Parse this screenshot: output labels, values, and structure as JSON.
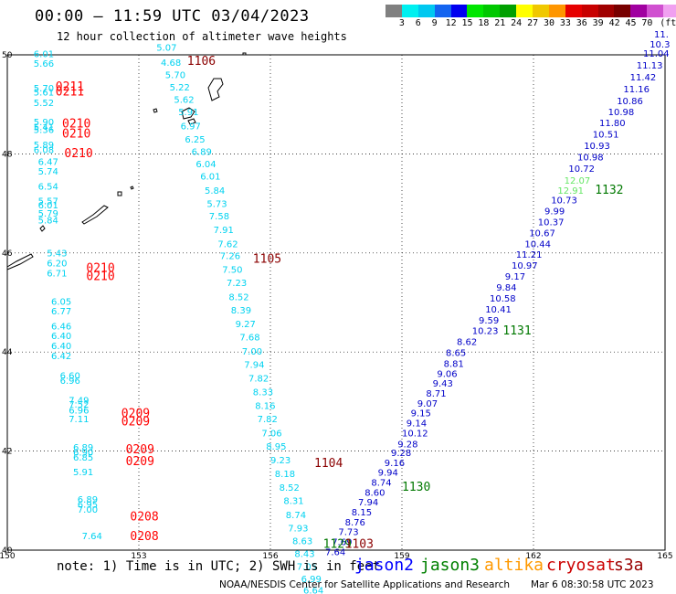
{
  "title": "00:00 – 11:59 UTC 03/04/2023",
  "subtitle": "12 hour collection of altimeter wave heights",
  "legend": {
    "colors": [
      "#808080",
      "#00f0f0",
      "#00c8f0",
      "#1464f0",
      "#0000f0",
      "#00e600",
      "#00c800",
      "#00a000",
      "#ffff00",
      "#f0c800",
      "#ff9600",
      "#e60000",
      "#c80000",
      "#a00000",
      "#780000",
      "#a000a0",
      "#d050d0",
      "#f0a0f0",
      "#000000"
    ],
    "labels": [
      "3",
      "6",
      "9",
      "12",
      "15",
      "18",
      "21",
      "24",
      "27",
      "30",
      "33",
      "36",
      "39",
      "42",
      "45",
      "70",
      "(ft)"
    ]
  },
  "axes": {
    "x_ticks": [
      "150",
      "153",
      "156",
      "159",
      "162",
      "165"
    ],
    "y_ticks": [
      "40",
      "42",
      "44",
      "46",
      "48",
      "50"
    ]
  },
  "tracks": [
    {
      "id": "s3a_west",
      "color": "#00d2f0",
      "points": [
        {
          "v": "6.01",
          "lon": 150.6,
          "lat": 49.95
        },
        {
          "v": "5.66",
          "lon": 150.6,
          "lat": 49.76
        },
        {
          "v": "5.70",
          "lon": 150.6,
          "lat": 49.26
        },
        {
          "v": "5.61",
          "lon": 150.6,
          "lat": 49.18
        },
        {
          "v": "5.52",
          "lon": 150.6,
          "lat": 48.97
        },
        {
          "v": "5.90",
          "lon": 150.6,
          "lat": 48.58
        },
        {
          "v": "5.41",
          "lon": 150.6,
          "lat": 48.48
        },
        {
          "v": "5.36",
          "lon": 150.6,
          "lat": 48.42
        },
        {
          "v": "5.89",
          "lon": 150.6,
          "lat": 48.12
        },
        {
          "v": "6.08",
          "lon": 150.6,
          "lat": 48.02
        },
        {
          "v": "6.47",
          "lon": 150.7,
          "lat": 47.78
        },
        {
          "v": "5.74",
          "lon": 150.7,
          "lat": 47.58
        },
        {
          "v": "6.54",
          "lon": 150.7,
          "lat": 47.28
        },
        {
          "v": "5.57",
          "lon": 150.7,
          "lat": 46.98
        },
        {
          "v": "6.01",
          "lon": 150.7,
          "lat": 46.9
        },
        {
          "v": "5.79",
          "lon": 150.7,
          "lat": 46.73
        },
        {
          "v": "5.84",
          "lon": 150.7,
          "lat": 46.6
        },
        {
          "v": "5.43",
          "lon": 150.9,
          "lat": 45.93
        },
        {
          "v": "6.20",
          "lon": 150.9,
          "lat": 45.73
        },
        {
          "v": "6.71",
          "lon": 150.9,
          "lat": 45.53
        },
        {
          "v": "6.05",
          "lon": 151.0,
          "lat": 44.95
        },
        {
          "v": "6.77",
          "lon": 151.0,
          "lat": 44.76
        },
        {
          "v": "6.46",
          "lon": 151.0,
          "lat": 44.46
        },
        {
          "v": "6.40",
          "lon": 151.0,
          "lat": 44.26
        },
        {
          "v": "6.40",
          "lon": 151.0,
          "lat": 44.06
        },
        {
          "v": "6.42",
          "lon": 151.0,
          "lat": 43.86
        },
        {
          "v": "6.60",
          "lon": 151.2,
          "lat": 43.46
        },
        {
          "v": "6.96",
          "lon": 151.2,
          "lat": 43.36
        },
        {
          "v": "7.49",
          "lon": 151.4,
          "lat": 42.96
        },
        {
          "v": "7.52",
          "lon": 151.4,
          "lat": 42.88
        },
        {
          "v": "6.96",
          "lon": 151.4,
          "lat": 42.76
        },
        {
          "v": "7.11",
          "lon": 151.4,
          "lat": 42.58
        },
        {
          "v": "6.89",
          "lon": 151.5,
          "lat": 42.01
        },
        {
          "v": "6.90",
          "lon": 151.5,
          "lat": 41.91
        },
        {
          "v": "6.85",
          "lon": 151.5,
          "lat": 41.81
        },
        {
          "v": "5.91",
          "lon": 151.5,
          "lat": 41.51
        },
        {
          "v": "6.89",
          "lon": 151.6,
          "lat": 40.96
        },
        {
          "v": "6.95",
          "lon": 151.6,
          "lat": 40.86
        },
        {
          "v": "7.00",
          "lon": 151.6,
          "lat": 40.76
        },
        {
          "v": "7.64",
          "lon": 151.7,
          "lat": 40.22
        }
      ]
    },
    {
      "id": "s3a_central",
      "color": "#00d2f0",
      "points": [
        {
          "v": "5.07",
          "lon": 153.4,
          "lat": 50.08
        },
        {
          "v": "4.68",
          "lon": 153.5,
          "lat": 49.78
        },
        {
          "v": "5.70",
          "lon": 153.6,
          "lat": 49.53
        },
        {
          "v": "5.22",
          "lon": 153.7,
          "lat": 49.28
        },
        {
          "v": "5.62",
          "lon": 153.8,
          "lat": 49.03
        },
        {
          "v": "5.91",
          "lon": 153.9,
          "lat": 48.78
        },
        {
          "v": "6.97",
          "lon": 153.95,
          "lat": 48.5
        },
        {
          "v": "6.25",
          "lon": 154.05,
          "lat": 48.23
        },
        {
          "v": "6.89",
          "lon": 154.2,
          "lat": 47.98
        },
        {
          "v": "6.04",
          "lon": 154.3,
          "lat": 47.73
        },
        {
          "v": "6.01",
          "lon": 154.4,
          "lat": 47.48
        },
        {
          "v": "5.84",
          "lon": 154.5,
          "lat": 47.2
        },
        {
          "v": "5.73",
          "lon": 154.55,
          "lat": 46.93
        },
        {
          "v": "7.58",
          "lon": 154.6,
          "lat": 46.68
        },
        {
          "v": "7.91",
          "lon": 154.7,
          "lat": 46.4
        },
        {
          "v": "7.62",
          "lon": 154.8,
          "lat": 46.12
        },
        {
          "v": "7.26",
          "lon": 154.85,
          "lat": 45.88
        },
        {
          "v": "7.50",
          "lon": 154.9,
          "lat": 45.6
        },
        {
          "v": "7.23",
          "lon": 155.0,
          "lat": 45.33
        },
        {
          "v": "8.52",
          "lon": 155.05,
          "lat": 45.05
        },
        {
          "v": "8.39",
          "lon": 155.1,
          "lat": 44.78
        },
        {
          "v": "9.27",
          "lon": 155.2,
          "lat": 44.5
        },
        {
          "v": "7.68",
          "lon": 155.3,
          "lat": 44.23
        },
        {
          "v": "7.00",
          "lon": 155.35,
          "lat": 43.95
        },
        {
          "v": "7.94",
          "lon": 155.4,
          "lat": 43.68
        },
        {
          "v": "7.82",
          "lon": 155.5,
          "lat": 43.4
        },
        {
          "v": "8.33",
          "lon": 155.6,
          "lat": 43.13
        },
        {
          "v": "8.16",
          "lon": 155.65,
          "lat": 42.85
        },
        {
          "v": "7.82",
          "lon": 155.7,
          "lat": 42.58
        },
        {
          "v": "7.06",
          "lon": 155.8,
          "lat": 42.3
        },
        {
          "v": "8.95",
          "lon": 155.9,
          "lat": 42.03
        },
        {
          "v": "9.23",
          "lon": 156.0,
          "lat": 41.75
        },
        {
          "v": "8.18",
          "lon": 156.1,
          "lat": 41.48
        },
        {
          "v": "8.52",
          "lon": 156.2,
          "lat": 41.2
        },
        {
          "v": "8.31",
          "lon": 156.3,
          "lat": 40.93
        },
        {
          "v": "8.74",
          "lon": 156.35,
          "lat": 40.65
        },
        {
          "v": "7.93",
          "lon": 156.4,
          "lat": 40.38
        },
        {
          "v": "8.63",
          "lon": 156.5,
          "lat": 40.12
        },
        {
          "v": "8.43",
          "lon": 156.55,
          "lat": 39.86
        },
        {
          "v": "7.05",
          "lon": 156.6,
          "lat": 39.6
        },
        {
          "v": "6.99",
          "lon": 156.7,
          "lat": 39.35
        },
        {
          "v": "6.64",
          "lon": 156.75,
          "lat": 39.12
        },
        {
          "v": "6.15",
          "lon": 156.8,
          "lat": 38.9
        },
        {
          "v": "6.69",
          "lon": 156.5,
          "lat": 38.62
        },
        {
          "v": "6.34",
          "lon": 156.7,
          "lat": 38.62
        }
      ]
    },
    {
      "id": "jason2_east",
      "color": "#0000c8",
      "points": [
        {
          "v": "11.",
          "lon": 164.75,
          "lat": 50.35
        },
        {
          "v": "10.3",
          "lon": 164.65,
          "lat": 50.15
        },
        {
          "v": "11.04",
          "lon": 164.5,
          "lat": 49.96
        },
        {
          "v": "11.13",
          "lon": 164.35,
          "lat": 49.72
        },
        {
          "v": "11.42",
          "lon": 164.2,
          "lat": 49.48
        },
        {
          "v": "11.16",
          "lon": 164.05,
          "lat": 49.24
        },
        {
          "v": "10.86",
          "lon": 163.9,
          "lat": 49.0
        },
        {
          "v": "10.98",
          "lon": 163.7,
          "lat": 48.78
        },
        {
          "v": "11.80",
          "lon": 163.5,
          "lat": 48.56
        },
        {
          "v": "10.51",
          "lon": 163.35,
          "lat": 48.33
        },
        {
          "v": "10.93",
          "lon": 163.15,
          "lat": 48.1
        },
        {
          "v": "10.98",
          "lon": 163.0,
          "lat": 47.87
        },
        {
          "v": "10.72",
          "lon": 162.8,
          "lat": 47.64
        },
        {
          "v": "10.73",
          "lon": 162.4,
          "lat": 47.0
        },
        {
          "v": "9.99",
          "lon": 162.25,
          "lat": 46.78
        },
        {
          "v": "10.37",
          "lon": 162.1,
          "lat": 46.56
        },
        {
          "v": "10.67",
          "lon": 161.9,
          "lat": 46.34
        },
        {
          "v": "10.44",
          "lon": 161.8,
          "lat": 46.12
        },
        {
          "v": "11.21",
          "lon": 161.6,
          "lat": 45.9
        },
        {
          "v": "10.97",
          "lon": 161.5,
          "lat": 45.68
        },
        {
          "v": "9.17",
          "lon": 161.35,
          "lat": 45.46
        },
        {
          "v": "9.84",
          "lon": 161.15,
          "lat": 45.24
        },
        {
          "v": "10.58",
          "lon": 161.0,
          "lat": 45.02
        },
        {
          "v": "10.41",
          "lon": 160.9,
          "lat": 44.8
        },
        {
          "v": "9.59",
          "lon": 160.75,
          "lat": 44.58
        },
        {
          "v": "10.23",
          "lon": 160.6,
          "lat": 44.36
        },
        {
          "v": "8.62",
          "lon": 160.25,
          "lat": 44.14
        },
        {
          "v": "8.65",
          "lon": 160.0,
          "lat": 43.92
        },
        {
          "v": "8.81",
          "lon": 159.95,
          "lat": 43.7
        },
        {
          "v": "9.06",
          "lon": 159.8,
          "lat": 43.5
        },
        {
          "v": "9.43",
          "lon": 159.7,
          "lat": 43.3
        },
        {
          "v": "8.71",
          "lon": 159.55,
          "lat": 43.1
        },
        {
          "v": "9.07",
          "lon": 159.35,
          "lat": 42.9
        },
        {
          "v": "9.15",
          "lon": 159.2,
          "lat": 42.7
        },
        {
          "v": "9.14",
          "lon": 159.1,
          "lat": 42.5
        },
        {
          "v": "10.12",
          "lon": 159.0,
          "lat": 42.3
        },
        {
          "v": "9.28",
          "lon": 158.9,
          "lat": 42.08
        },
        {
          "v": "9.28",
          "lon": 158.75,
          "lat": 41.9
        },
        {
          "v": "9.16",
          "lon": 158.6,
          "lat": 41.7
        },
        {
          "v": "9.94",
          "lon": 158.45,
          "lat": 41.5
        },
        {
          "v": "8.74",
          "lon": 158.3,
          "lat": 41.3
        },
        {
          "v": "8.60",
          "lon": 158.15,
          "lat": 41.1
        },
        {
          "v": "7.94",
          "lon": 158.0,
          "lat": 40.9
        },
        {
          "v": "8.15",
          "lon": 157.85,
          "lat": 40.7
        },
        {
          "v": "8.76",
          "lon": 157.7,
          "lat": 40.5
        },
        {
          "v": "7.73",
          "lon": 157.55,
          "lat": 40.3
        },
        {
          "v": "7.69",
          "lon": 157.4,
          "lat": 40.1
        },
        {
          "v": "7.64",
          "lon": 157.25,
          "lat": 39.9
        }
      ]
    },
    {
      "id": "jason3_east",
      "color": "#64e664",
      "points": [
        {
          "v": "12.07",
          "lon": 162.7,
          "lat": 47.4
        },
        {
          "v": "12.91",
          "lon": 162.55,
          "lat": 47.2
        }
      ]
    }
  ],
  "time_labels": [
    {
      "text": "1106",
      "color": "#8b0000",
      "lon": 154.1,
      "lat": 49.8
    },
    {
      "text": "0211",
      "color": "#ff0000",
      "lon": 151.1,
      "lat": 49.28
    },
    {
      "text": "0211",
      "color": "#ff0000",
      "lon": 151.1,
      "lat": 49.18
    },
    {
      "text": "0210",
      "color": "#ff0000",
      "lon": 151.25,
      "lat": 48.53
    },
    {
      "text": "0210",
      "color": "#ff0000",
      "lon": 151.25,
      "lat": 48.33
    },
    {
      "text": "0210",
      "color": "#ff0000",
      "lon": 151.3,
      "lat": 47.93
    },
    {
      "text": "1105",
      "color": "#8b0000",
      "lon": 155.6,
      "lat": 45.8
    },
    {
      "text": "0210",
      "color": "#ff0000",
      "lon": 151.8,
      "lat": 45.62
    },
    {
      "text": "0210",
      "color": "#ff0000",
      "lon": 151.8,
      "lat": 45.45
    },
    {
      "text": "0209",
      "color": "#ff0000",
      "lon": 152.6,
      "lat": 42.68
    },
    {
      "text": "0209",
      "color": "#ff0000",
      "lon": 152.6,
      "lat": 42.52
    },
    {
      "text": "1104",
      "color": "#8b0000",
      "lon": 157.0,
      "lat": 41.68
    },
    {
      "text": "0209",
      "color": "#ff0000",
      "lon": 152.7,
      "lat": 41.96
    },
    {
      "text": "0209",
      "color": "#ff0000",
      "lon": 152.7,
      "lat": 41.72
    },
    {
      "text": "1130",
      "color": "#007800",
      "lon": 159.0,
      "lat": 41.2
    },
    {
      "text": "1131",
      "color": "#007800",
      "lon": 161.3,
      "lat": 44.35
    },
    {
      "text": "1132",
      "color": "#007800",
      "lon": 163.4,
      "lat": 47.2
    },
    {
      "text": "0208",
      "color": "#ff0000",
      "lon": 152.8,
      "lat": 40.6
    },
    {
      "text": "0208",
      "color": "#ff0000",
      "lon": 152.8,
      "lat": 40.2
    },
    {
      "text": "1129",
      "color": "#007800",
      "lon": 157.2,
      "lat": 40.05
    },
    {
      "text": "1103",
      "color": "#8b0000",
      "lon": 157.7,
      "lat": 40.05
    }
  ],
  "note": "note:  1) Time is in UTC; 2) SWH is in feet",
  "satellites": [
    {
      "name": "jason2",
      "color": "#0000ff"
    },
    {
      "name": "jason3",
      "color": "#008000"
    },
    {
      "name": "altika",
      "color": "#ff9900"
    },
    {
      "name": "cryosat",
      "color": "#cc0000"
    },
    {
      "name": "s3a",
      "color": "#990000"
    }
  ],
  "credit": "NOAA/NESDIS Center for Satellite Applications and Research",
  "credit_time": "Mar  6 08:30:58 UTC 2023"
}
